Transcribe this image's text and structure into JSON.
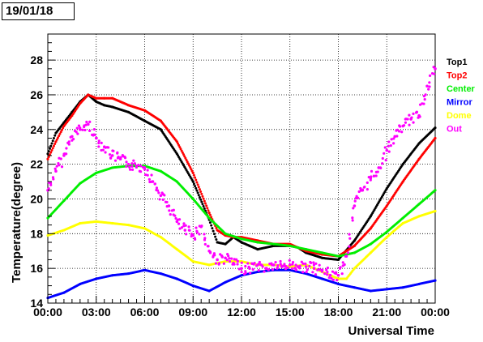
{
  "chart_data": {
    "type": "scatter",
    "title": "19/01/18",
    "xlabel": "Universal Time",
    "ylabel": "Temperature(degree)",
    "xlim": [
      0,
      24
    ],
    "ylim": [
      14,
      29.5
    ],
    "grid": true,
    "legend_position": "top-right",
    "x_ticks": [
      {
        "value": 0,
        "label": "00:00"
      },
      {
        "value": 3,
        "label": "03:00"
      },
      {
        "value": 6,
        "label": "06:00"
      },
      {
        "value": 9,
        "label": "09:00"
      },
      {
        "value": 12,
        "label": "12:00"
      },
      {
        "value": 15,
        "label": "15:00"
      },
      {
        "value": 18,
        "label": "18:00"
      },
      {
        "value": 21,
        "label": "21:00"
      },
      {
        "value": 24,
        "label": "00:00"
      }
    ],
    "y_ticks": [
      {
        "value": 14,
        "label": "14"
      },
      {
        "value": 16,
        "label": "16"
      },
      {
        "value": 18,
        "label": "18"
      },
      {
        "value": 20,
        "label": "20"
      },
      {
        "value": 22,
        "label": "22"
      },
      {
        "value": 24,
        "label": "24"
      },
      {
        "value": 26,
        "label": "26"
      },
      {
        "value": 28,
        "label": "28"
      }
    ],
    "series": [
      {
        "name": "Top1",
        "color": "#000000",
        "x": [
          0,
          0.5,
          1,
          1.5,
          2,
          2.5,
          3,
          3.5,
          4,
          5,
          6,
          7,
          8,
          9,
          10,
          10.5,
          11,
          11.5,
          12,
          12.5,
          13,
          14,
          15,
          15.5,
          16,
          17,
          18,
          19,
          20,
          21,
          22,
          23,
          24
        ],
        "y": [
          22.6,
          23.8,
          24.4,
          25.0,
          25.6,
          26.0,
          25.6,
          25.4,
          25.3,
          25.0,
          24.5,
          24.0,
          22.6,
          21.0,
          18.8,
          17.5,
          17.4,
          17.8,
          17.5,
          17.3,
          17.1,
          17.3,
          17.3,
          17.2,
          16.9,
          16.6,
          16.5,
          17.6,
          19.0,
          20.6,
          22.0,
          23.2,
          24.1
        ]
      },
      {
        "name": "Top2",
        "color": "#ff0000",
        "x": [
          0,
          0.5,
          1,
          1.5,
          2,
          2.5,
          3,
          3.5,
          4,
          5,
          6,
          7,
          8,
          9,
          10,
          10.5,
          11,
          11.5,
          12,
          13,
          14,
          15,
          16,
          17,
          18,
          19,
          20,
          21,
          22,
          23,
          24
        ],
        "y": [
          22.3,
          23.3,
          24.2,
          24.8,
          25.5,
          26.0,
          25.8,
          25.8,
          25.8,
          25.4,
          25.1,
          24.5,
          23.3,
          21.5,
          19.2,
          18.2,
          17.9,
          17.8,
          17.8,
          17.6,
          17.4,
          17.4,
          17.0,
          16.8,
          16.7,
          17.3,
          18.3,
          19.6,
          21.0,
          22.3,
          23.5
        ]
      },
      {
        "name": "Center",
        "color": "#00ee00",
        "x": [
          0,
          1,
          2,
          3,
          4,
          5,
          6,
          7,
          8,
          9,
          10,
          11,
          12,
          13,
          14,
          15,
          16,
          17,
          18,
          19,
          20,
          21,
          22,
          23,
          24
        ],
        "y": [
          18.9,
          19.9,
          20.9,
          21.5,
          21.8,
          21.9,
          21.9,
          21.6,
          21.0,
          20.0,
          18.9,
          18.0,
          17.7,
          17.5,
          17.4,
          17.3,
          17.1,
          16.9,
          16.7,
          16.9,
          17.4,
          18.1,
          18.9,
          19.7,
          20.5
        ]
      },
      {
        "name": "Mirror",
        "color": "#0000ff",
        "x": [
          0,
          1,
          2,
          3,
          4,
          5,
          6,
          7,
          8,
          9,
          10,
          11,
          12,
          13,
          14,
          15,
          16,
          17,
          18,
          19,
          20,
          21,
          22,
          23,
          24
        ],
        "y": [
          14.3,
          14.6,
          15.1,
          15.4,
          15.6,
          15.7,
          15.9,
          15.7,
          15.4,
          15.0,
          14.7,
          15.2,
          15.6,
          15.8,
          15.9,
          15.9,
          15.7,
          15.4,
          15.1,
          14.9,
          14.7,
          14.8,
          14.9,
          15.1,
          15.3
        ]
      },
      {
        "name": "Dome",
        "color": "#ffff00",
        "x": [
          0,
          1,
          2,
          3,
          4,
          5,
          6,
          7,
          8,
          9,
          10,
          11,
          12,
          13,
          14,
          15,
          16,
          17,
          18,
          18.5,
          19,
          20,
          21,
          22,
          23,
          24
        ],
        "y": [
          17.9,
          18.2,
          18.6,
          18.7,
          18.6,
          18.5,
          18.3,
          17.8,
          17.1,
          16.4,
          16.2,
          16.4,
          16.4,
          16.2,
          16.2,
          16.1,
          16.2,
          15.8,
          15.4,
          15.4,
          16.0,
          16.9,
          17.8,
          18.6,
          19.0,
          19.3
        ]
      },
      {
        "name": "Out",
        "color": "#ff00ff",
        "x": [
          0,
          0.5,
          1,
          1.5,
          2,
          2.5,
          3,
          3.5,
          4,
          4.5,
          5,
          5.5,
          6,
          6.5,
          7,
          7.5,
          8,
          8.5,
          9,
          9.5,
          10,
          10.5,
          11,
          11.5,
          12,
          12.5,
          13,
          13.5,
          14,
          14.5,
          15,
          15.5,
          16,
          16.5,
          17,
          17.5,
          18,
          18.5,
          19,
          19.5,
          20,
          20.5,
          21,
          21.5,
          22,
          22.5,
          23,
          23.5,
          24
        ],
        "y": [
          20.5,
          21.6,
          22.5,
          23.6,
          24.0,
          24.3,
          23.5,
          23.0,
          22.5,
          22.3,
          22.0,
          21.9,
          21.8,
          21.0,
          20.2,
          19.6,
          18.7,
          18.2,
          17.9,
          18.4,
          17.0,
          16.5,
          16.6,
          16.3,
          16.0,
          16.0,
          16.2,
          16.0,
          16.2,
          16.1,
          16.2,
          16.1,
          16.1,
          16.0,
          15.9,
          15.6,
          15.6,
          16.7,
          19.6,
          20.5,
          21.2,
          21.8,
          22.8,
          23.6,
          24.2,
          24.6,
          24.8,
          26.5,
          27.5
        ]
      }
    ]
  }
}
